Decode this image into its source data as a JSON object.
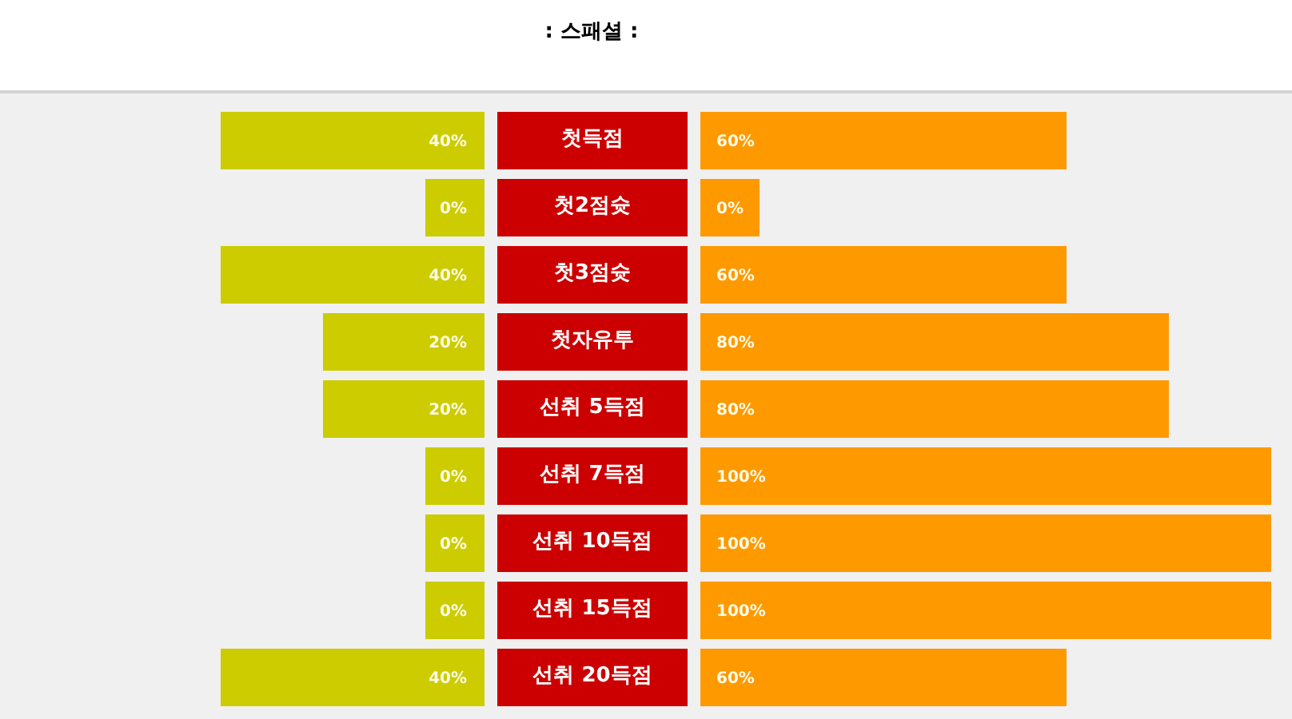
{
  "chart_data": [
    {
      "type": "bar",
      "orientation": "horizontal",
      "title": ": 스패셜 :",
      "categories": [
        "첫득점",
        "첫2점슛",
        "첫3점슛",
        "첫자유투",
        "선취 5득점",
        "선취 7득점",
        "선취 10득점",
        "선취 15득점",
        "선취 20득점"
      ],
      "series": [
        {
          "color": "#cccc00",
          "values": [
            40,
            0,
            40,
            20,
            20,
            0,
            0,
            0,
            40
          ],
          "value_labels": [
            "40%",
            "0%",
            "40%",
            "20%",
            "20%",
            "0%",
            "0%",
            "0%",
            "40%"
          ]
        }
      ]
    },
    {
      "type": "bar",
      "orientation": "horizontal",
      "categories": [
        null,
        null,
        null,
        null,
        null,
        null,
        null,
        null,
        null
      ],
      "series": [
        {
          "color": "#ff9900",
          "values": [
            60,
            0,
            60,
            80,
            80,
            100,
            100,
            100,
            60
          ],
          "value_labels": [
            "60%",
            "0%",
            "60%",
            "80%",
            "80%",
            "100%",
            "100%",
            "100%",
            "60%"
          ]
        }
      ]
    }
  ]
}
